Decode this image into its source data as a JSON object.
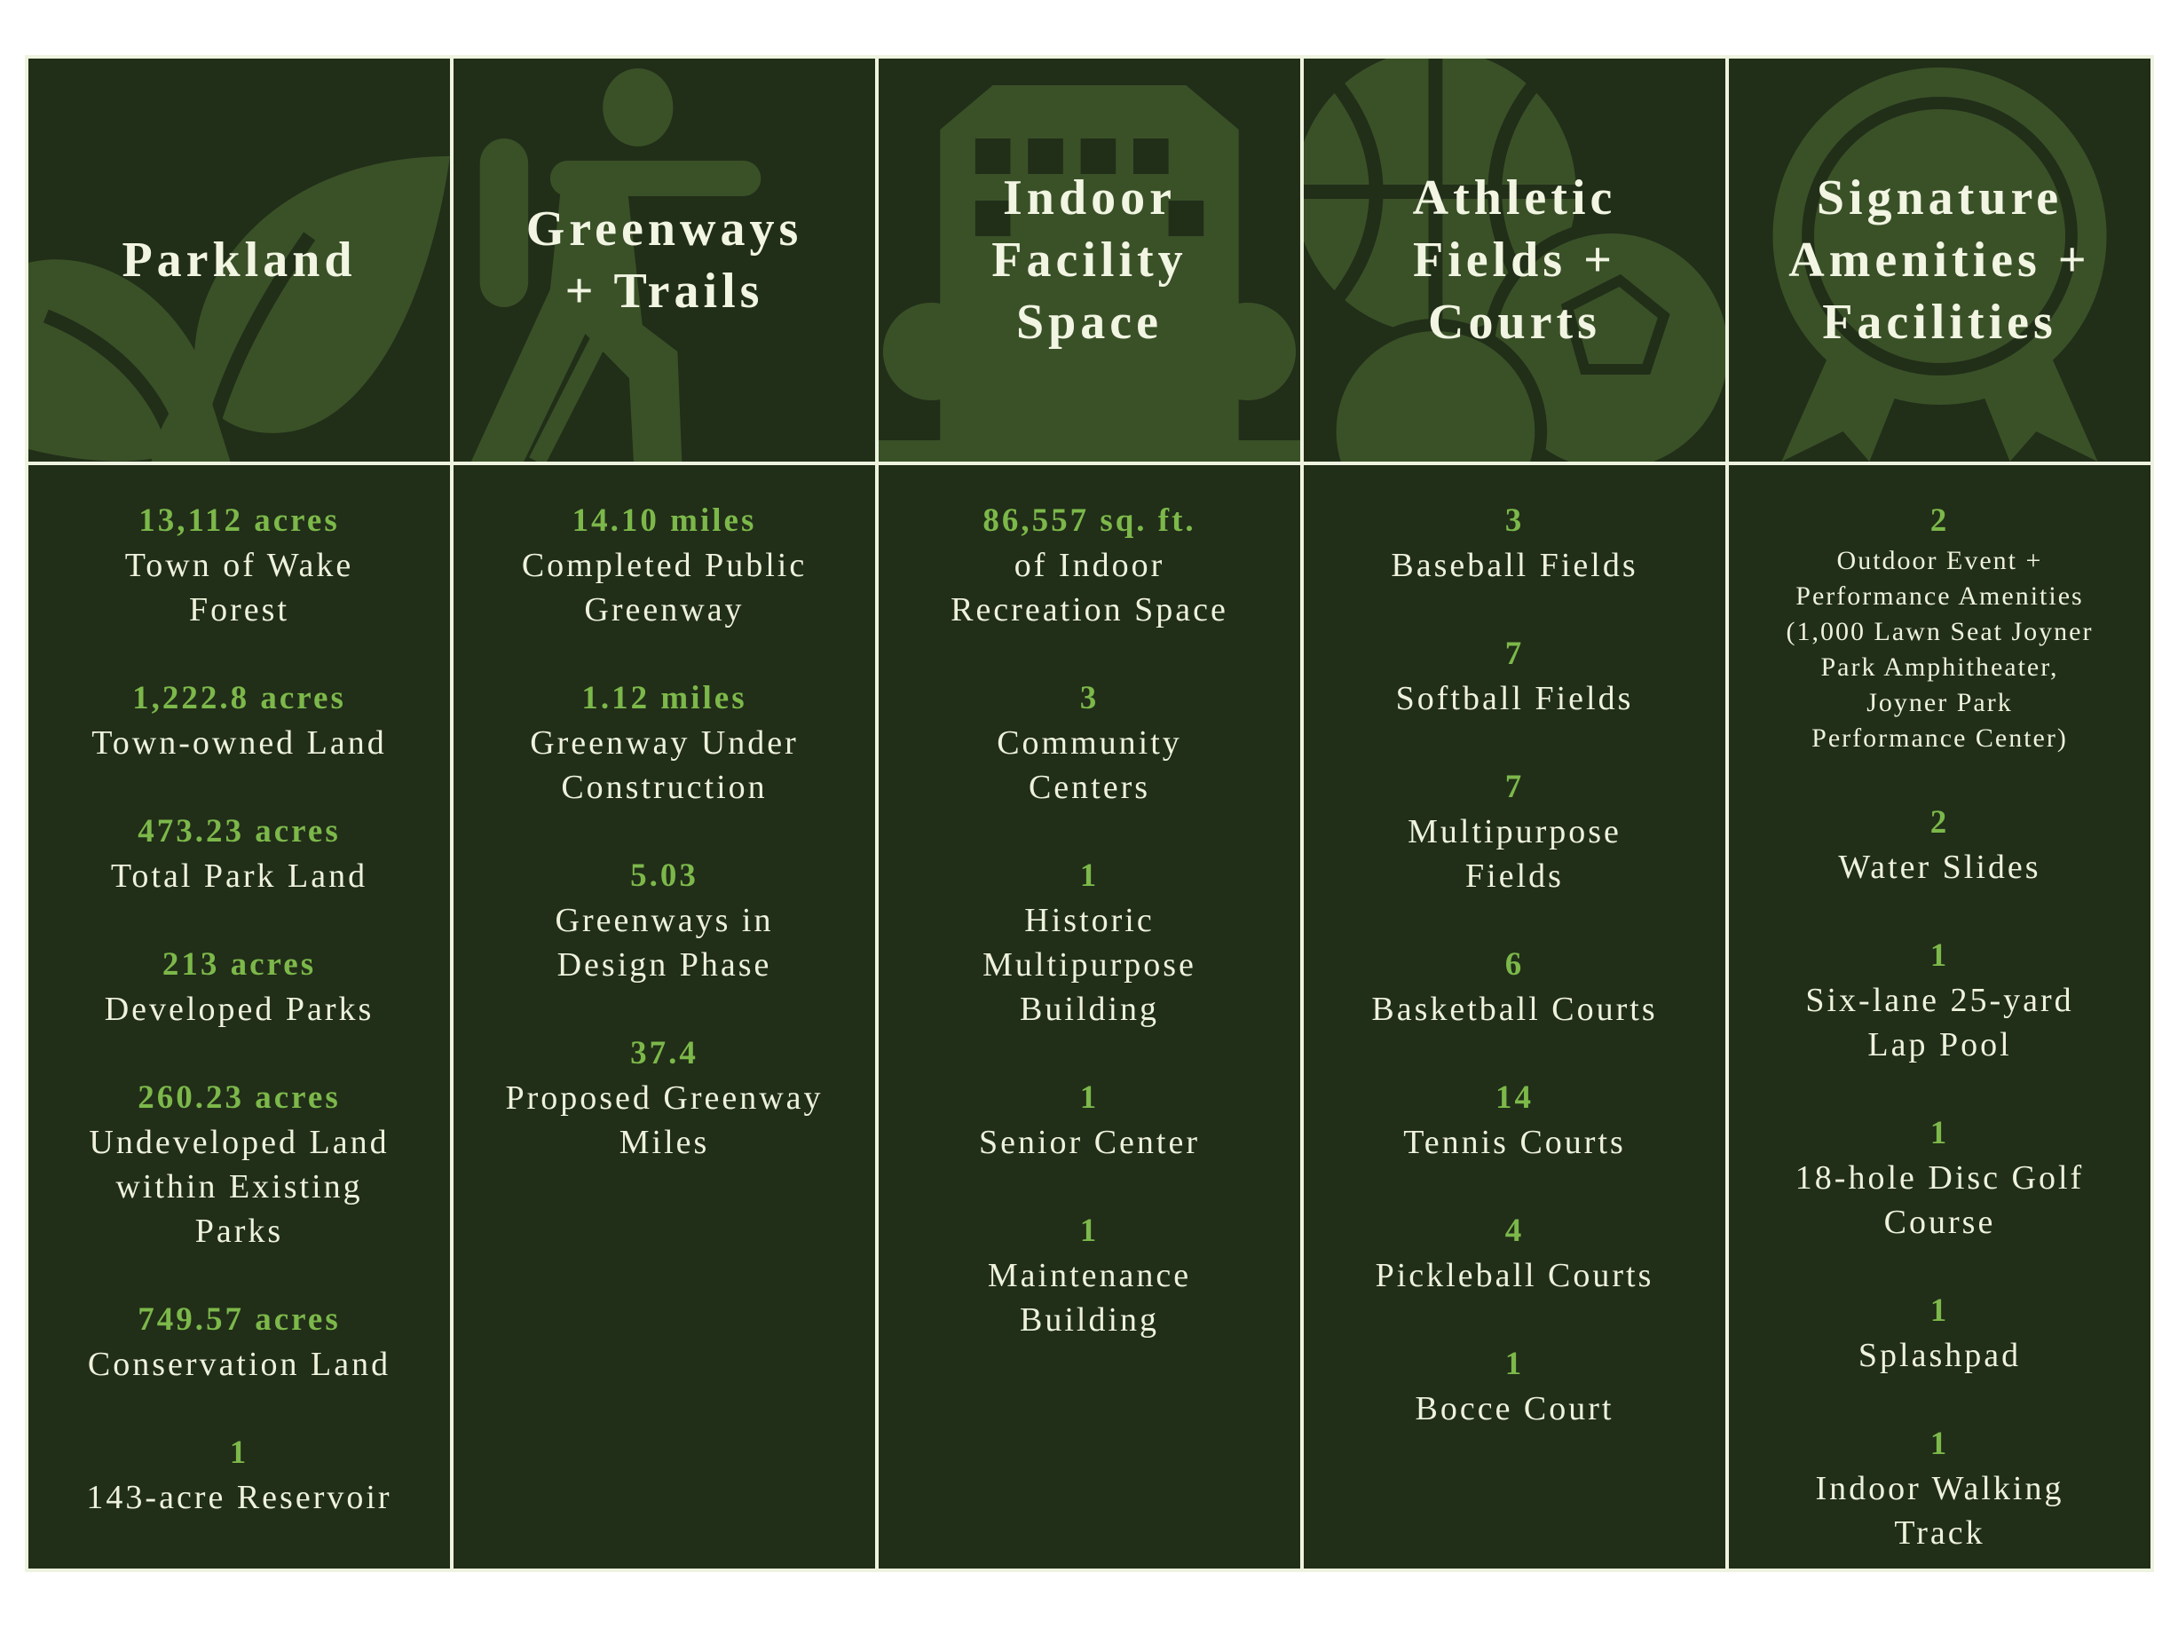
{
  "colors": {
    "background": "#212e18",
    "icon": "#3a5128",
    "border": "#eef3e0",
    "value": "#7cb84a",
    "text": "#eef2dc"
  },
  "columns": [
    {
      "title": "Parkland",
      "icon": "leaf-icon",
      "items": [
        {
          "value": "13,112 acres",
          "label": "Town of Wake\nForest"
        },
        {
          "value": "1,222.8 acres",
          "label": "Town-owned Land"
        },
        {
          "value": "473.23 acres",
          "label": "Total Park Land"
        },
        {
          "value": "213 acres",
          "label": "Developed Parks"
        },
        {
          "value": "260.23 acres",
          "label": "Undeveloped Land\nwithin Existing\nParks"
        },
        {
          "value": "749.57 acres",
          "label": "Conservation Land"
        },
        {
          "value": "1",
          "label": "143-acre Reservoir"
        }
      ]
    },
    {
      "title": "Greenways\n+  Trails",
      "icon": "hiker-icon",
      "items": [
        {
          "value": "14.10 miles",
          "label": "Completed Public\nGreenway"
        },
        {
          "value": "1.12 miles",
          "label": "Greenway Under\nConstruction"
        },
        {
          "value": "5.03",
          "label": "Greenways in\nDesign Phase"
        },
        {
          "value": "37.4",
          "label": "Proposed Greenway\nMiles"
        }
      ]
    },
    {
      "title": "Indoor\nFacility\nSpace",
      "icon": "building-icon",
      "items": [
        {
          "value": "86,557 sq. ft.",
          "label": "of Indoor\nRecreation Space"
        },
        {
          "value": "3",
          "label": "Community\nCenters"
        },
        {
          "value": "1",
          "label": "Historic\nMultipurpose\nBuilding"
        },
        {
          "value": "1",
          "label": "Senior Center"
        },
        {
          "value": "1",
          "label": "Maintenance\nBuilding"
        }
      ]
    },
    {
      "title": "Athletic\nFields +\nCourts",
      "icon": "sports-balls-icon",
      "items": [
        {
          "value": "3",
          "label": "Baseball Fields"
        },
        {
          "value": "7",
          "label": "Softball Fields"
        },
        {
          "value": "7",
          "label": "Multipurpose\nFields"
        },
        {
          "value": "6",
          "label": "Basketball Courts"
        },
        {
          "value": "14",
          "label": "Tennis Courts"
        },
        {
          "value": "4",
          "label": "Pickleball Courts"
        },
        {
          "value": "1",
          "label": "Bocce Court"
        }
      ]
    },
    {
      "title": "Signature\nAmenities +\nFacilities",
      "icon": "award-ribbon-icon",
      "items": [
        {
          "value": "2",
          "label": "Outdoor Event +\nPerformance Amenities\n(1,000 Lawn Seat Joyner\nPark Amphitheater,\nJoyner Park\nPerformance Center)",
          "small": true
        },
        {
          "value": "2",
          "label": "Water Slides"
        },
        {
          "value": "1",
          "label": "Six-lane 25-yard\nLap Pool"
        },
        {
          "value": "1",
          "label": "18-hole Disc Golf\nCourse"
        },
        {
          "value": "1",
          "label": "Splashpad"
        },
        {
          "value": "1",
          "label": "Indoor Walking\nTrack"
        }
      ]
    }
  ]
}
